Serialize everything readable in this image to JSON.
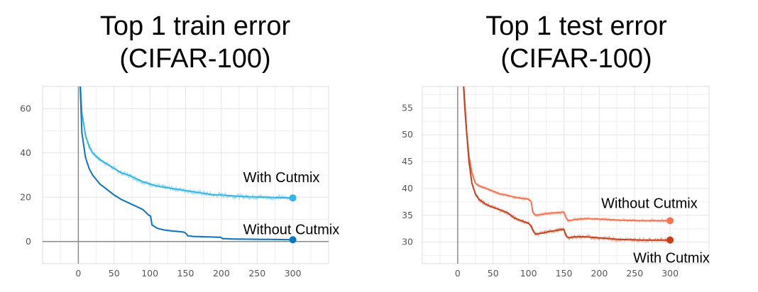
{
  "chart_data": [
    {
      "type": "line",
      "title": "Top 1 train error",
      "subtitle": "(CIFAR-100)",
      "xlabel": "",
      "ylabel": "",
      "xlim": [
        -50,
        350
      ],
      "ylim": [
        -10,
        70
      ],
      "x_ticks": [
        "0",
        "50",
        "100",
        "150",
        "200",
        "250",
        "300"
      ],
      "y_ticks": [
        "0",
        "20",
        "40",
        "60"
      ],
      "x_tick_values": [
        0,
        50,
        100,
        150,
        200,
        250,
        300
      ],
      "y_tick_values": [
        0,
        20,
        40,
        60
      ],
      "grid": true,
      "series": [
        {
          "annotation": "With Cutmix",
          "color": "#33b4e8",
          "noise": 1.3,
          "x": [
            2,
            5,
            10,
            15,
            20,
            30,
            40,
            50,
            60,
            70,
            80,
            90,
            100,
            110,
            120,
            130,
            140,
            150,
            160,
            170,
            180,
            190,
            200,
            220,
            240,
            260,
            280,
            300
          ],
          "y": [
            75,
            58,
            48,
            43,
            40,
            37,
            35,
            33,
            31,
            30,
            28.5,
            27,
            26,
            25,
            24.5,
            24,
            23.5,
            23,
            22.5,
            22,
            21.5,
            21,
            21,
            20.5,
            20.2,
            20,
            19.8,
            19.7
          ]
        },
        {
          "annotation": "Without Cutmix",
          "color": "#0d74c0",
          "noise": 0.25,
          "x": [
            2,
            5,
            10,
            15,
            20,
            30,
            40,
            50,
            60,
            70,
            80,
            90,
            98,
            101,
            103,
            110,
            120,
            130,
            140,
            148,
            151,
            153,
            160,
            180,
            199,
            202,
            220,
            250,
            280,
            300
          ],
          "y": [
            75,
            49,
            38,
            33,
            30,
            26,
            23.5,
            21,
            19,
            17.5,
            16,
            14.5,
            12,
            11.5,
            7.5,
            6,
            5.2,
            4.8,
            4.5,
            4.2,
            3.5,
            2.6,
            2.3,
            2.1,
            1.9,
            1.3,
            1.1,
            1,
            0.9,
            0.8
          ]
        }
      ]
    },
    {
      "type": "line",
      "title": "Top 1 test error",
      "subtitle": "(CIFAR-100)",
      "xlabel": "",
      "ylabel": "",
      "xlim": [
        -50,
        355
      ],
      "ylim": [
        26,
        59
      ],
      "x_ticks": [
        "0",
        "50",
        "100",
        "150",
        "200",
        "250",
        "300"
      ],
      "y_ticks": [
        "30",
        "35",
        "40",
        "45",
        "50",
        "55"
      ],
      "x_tick_values": [
        0,
        50,
        100,
        150,
        200,
        250,
        300
      ],
      "y_tick_values": [
        30,
        35,
        40,
        45,
        50,
        55
      ],
      "grid": true,
      "series": [
        {
          "annotation": "Without Cutmix",
          "color": "#f47350",
          "noise": 0.35,
          "x": [
            8,
            10,
            13,
            16,
            20,
            25,
            30,
            40,
            50,
            60,
            70,
            80,
            90,
            100,
            104,
            106,
            110,
            120,
            130,
            140,
            150,
            153,
            156,
            165,
            180,
            200,
            230,
            260,
            300
          ],
          "y": [
            60,
            56,
            50,
            46,
            43,
            41,
            40.5,
            40,
            39.5,
            39,
            38.7,
            38.4,
            38.2,
            38,
            37.5,
            35.6,
            35,
            35.2,
            35.4,
            35.5,
            35.6,
            34.6,
            34,
            34.2,
            34.4,
            34.3,
            34.1,
            34,
            34
          ]
        },
        {
          "annotation": "With Cutmix",
          "color": "#c8401a",
          "noise": 0.45,
          "x": [
            8,
            10,
            13,
            16,
            20,
            25,
            30,
            40,
            50,
            60,
            70,
            80,
            90,
            100,
            104,
            107,
            110,
            120,
            130,
            140,
            150,
            153,
            156,
            165,
            180,
            200,
            230,
            260,
            300
          ],
          "y": [
            60,
            55,
            50,
            45,
            41,
            39,
            38,
            37,
            36.5,
            36,
            35.5,
            34.5,
            34,
            33.5,
            33,
            32,
            31.5,
            31.7,
            32,
            32.2,
            32.4,
            31.2,
            30.8,
            31,
            31,
            30.8,
            30.5,
            30.4,
            30.4
          ]
        }
      ]
    }
  ]
}
